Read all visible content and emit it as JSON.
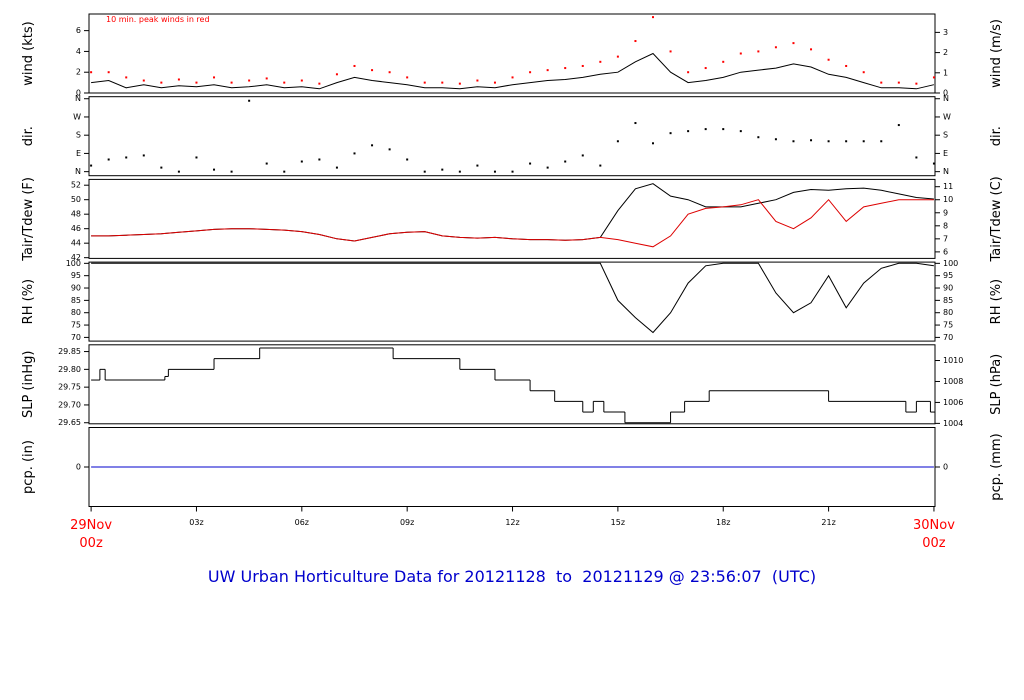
{
  "title": "UW Urban Horticulture Data for 20121128  to  20121129 @ 23:56:07  (UTC)",
  "title_color": "#0000cc",
  "chart_data": [
    {
      "type": "line",
      "ylabel": "wind (kts)",
      "y2label": "wind (m/s)",
      "annotation": "10 min. peak winds in red",
      "annotation_color": "#ff0000",
      "xlim": [
        -0.06,
        24.03
      ],
      "ylim": [
        0,
        7.6
      ],
      "yticks": [
        0,
        2,
        4,
        6
      ],
      "y2lim": [
        0,
        3.91
      ],
      "y2ticks": [
        0,
        1,
        2,
        3
      ],
      "x": [
        0,
        0.5,
        1,
        1.5,
        2,
        2.5,
        3,
        3.5,
        4,
        4.5,
        5,
        5.5,
        6,
        6.5,
        7,
        7.5,
        8,
        8.5,
        9,
        9.5,
        10,
        10.5,
        11,
        11.5,
        12,
        12.5,
        13,
        13.5,
        14,
        14.5,
        15,
        15.5,
        16,
        16.5,
        17,
        17.5,
        18,
        18.5,
        19,
        19.5,
        20,
        20.5,
        21,
        21.5,
        22,
        22.5,
        23,
        23.5,
        24
      ],
      "series": [
        {
          "type": "line",
          "color": "#000000",
          "values": [
            1.0,
            1.2,
            0.5,
            0.8,
            0.5,
            0.7,
            0.6,
            0.8,
            0.5,
            0.6,
            0.8,
            0.5,
            0.6,
            0.4,
            1.0,
            1.5,
            1.2,
            1.0,
            0.8,
            0.5,
            0.5,
            0.4,
            0.6,
            0.5,
            0.8,
            1.0,
            1.2,
            1.3,
            1.5,
            1.8,
            2.0,
            3.0,
            3.8,
            2.0,
            1.0,
            1.2,
            1.5,
            2.0,
            2.2,
            2.4,
            2.8,
            2.5,
            1.8,
            1.5,
            1.0,
            0.5,
            0.5,
            0.4,
            0.8
          ]
        },
        {
          "type": "scatter",
          "color": "#ff0000",
          "values": [
            2.0,
            2.0,
            1.5,
            1.2,
            1.0,
            1.3,
            1.0,
            1.5,
            1.0,
            1.2,
            1.4,
            1.0,
            1.2,
            0.9,
            1.8,
            2.6,
            2.2,
            2.0,
            1.5,
            1.0,
            1.0,
            0.9,
            1.2,
            1.0,
            1.5,
            2.0,
            2.2,
            2.4,
            2.6,
            3.0,
            3.5,
            5.0,
            7.3,
            4.0,
            2.0,
            2.4,
            3.0,
            3.8,
            4.0,
            4.4,
            4.8,
            4.2,
            3.2,
            2.6,
            2.0,
            1.0,
            1.0,
            0.9,
            1.5
          ]
        }
      ]
    },
    {
      "type": "scatter",
      "ylabel": "dir.",
      "y2label": "dir.",
      "xlim": [
        -0.06,
        24.03
      ],
      "ylim": [
        -20,
        370
      ],
      "yticks": [
        {
          "value": 0,
          "label": "N"
        },
        {
          "value": 90,
          "label": "E"
        },
        {
          "value": 180,
          "label": "S"
        },
        {
          "value": 270,
          "label": "W"
        },
        {
          "value": 360,
          "label": "N"
        }
      ],
      "y2lim": [
        -20,
        370
      ],
      "y2ticks": [
        {
          "value": 0,
          "label": "N"
        },
        {
          "value": 90,
          "label": "E"
        },
        {
          "value": 180,
          "label": "S"
        },
        {
          "value": 270,
          "label": "W"
        },
        {
          "value": 360,
          "label": "N"
        }
      ],
      "x": [
        0,
        0.5,
        1,
        1.5,
        2,
        2.5,
        3,
        3.5,
        4,
        4.5,
        5,
        5.5,
        6,
        6.5,
        7,
        7.5,
        8,
        8.5,
        9,
        9.5,
        10,
        10.5,
        11,
        11.5,
        12,
        12.5,
        13,
        13.5,
        14,
        14.5,
        15,
        15.5,
        16,
        16.5,
        17,
        17.5,
        18,
        18.5,
        19,
        19.5,
        20,
        20.5,
        21,
        21.5,
        22,
        22.5,
        23,
        23.5,
        24
      ],
      "series": [
        {
          "type": "scatter",
          "color": "#000000",
          "values": [
            30,
            60,
            70,
            80,
            20,
            0,
            70,
            10,
            0,
            350,
            40,
            0,
            50,
            60,
            20,
            90,
            130,
            110,
            60,
            0,
            10,
            0,
            30,
            0,
            0,
            40,
            20,
            50,
            80,
            30,
            150,
            240,
            140,
            190,
            200,
            210,
            210,
            200,
            170,
            160,
            150,
            155,
            150,
            150,
            150,
            150,
            230,
            70,
            40
          ]
        }
      ]
    },
    {
      "type": "line",
      "ylabel": "Tair/Tdew (F)",
      "y2label": "Tair/Tdew (C)",
      "xlim": [
        -0.06,
        24.03
      ],
      "ylim": [
        41.9,
        52.8
      ],
      "yticks": [
        42,
        44,
        46,
        48,
        50,
        52
      ],
      "y2lim": [
        5.5,
        11.56
      ],
      "y2ticks": [
        6,
        7,
        8,
        9,
        10,
        11
      ],
      "x": [
        0,
        0.5,
        1,
        1.5,
        2,
        2.5,
        3,
        3.5,
        4,
        4.5,
        5,
        5.5,
        6,
        6.5,
        7,
        7.5,
        8,
        8.5,
        9,
        9.5,
        10,
        10.5,
        11,
        11.5,
        12,
        12.5,
        13,
        13.5,
        14,
        14.5,
        15,
        15.5,
        16,
        16.5,
        17,
        17.5,
        18,
        18.5,
        19,
        19.5,
        20,
        20.5,
        21,
        21.5,
        22,
        22.5,
        23,
        23.5,
        24
      ],
      "series": [
        {
          "type": "line",
          "color": "#000000",
          "values": [
            45,
            45,
            45.1,
            45.2,
            45.3,
            45.5,
            45.7,
            45.9,
            46,
            46,
            45.9,
            45.8,
            45.6,
            45.2,
            44.6,
            44.3,
            44.8,
            45.3,
            45.5,
            45.6,
            45,
            44.8,
            44.7,
            44.8,
            44.6,
            44.5,
            44.5,
            44.4,
            44.5,
            44.8,
            48.5,
            51.5,
            52.2,
            50.5,
            50,
            49,
            49,
            49,
            49.5,
            50,
            51,
            51.4,
            51.3,
            51.5,
            51.6,
            51.3,
            50.8,
            50.3,
            50.1
          ]
        },
        {
          "type": "line",
          "color": "#dd0000",
          "values": [
            45,
            45,
            45.1,
            45.2,
            45.3,
            45.5,
            45.7,
            45.9,
            46,
            46,
            45.9,
            45.8,
            45.6,
            45.2,
            44.6,
            44.3,
            44.8,
            45.3,
            45.5,
            45.6,
            45,
            44.8,
            44.7,
            44.8,
            44.6,
            44.5,
            44.5,
            44.4,
            44.5,
            44.8,
            44.5,
            44,
            43.5,
            45,
            48,
            48.8,
            49,
            49.3,
            50,
            47,
            46,
            47.5,
            50,
            47,
            49,
            49.5,
            50,
            50,
            50
          ]
        }
      ]
    },
    {
      "type": "line",
      "ylabel": "RH (%)",
      "y2label": "RH (%)",
      "xlim": [
        -0.06,
        24.03
      ],
      "ylim": [
        68.5,
        100.5
      ],
      "yticks": [
        70,
        75,
        80,
        85,
        90,
        95,
        100
      ],
      "y2lim": [
        68.5,
        100.5
      ],
      "y2ticks": [
        70,
        75,
        80,
        85,
        90,
        95,
        100
      ],
      "x": [
        0,
        0.5,
        1,
        1.5,
        2,
        2.5,
        3,
        3.5,
        4,
        4.5,
        5,
        5.5,
        6,
        6.5,
        7,
        7.5,
        8,
        8.5,
        9,
        9.5,
        10,
        10.5,
        11,
        11.5,
        12,
        12.5,
        13,
        13.5,
        14,
        14.5,
        15,
        15.5,
        16,
        16.5,
        17,
        17.5,
        18,
        18.5,
        19,
        19.5,
        20,
        20.5,
        21,
        21.5,
        22,
        22.5,
        23,
        23.5,
        24
      ],
      "series": [
        {
          "type": "line",
          "color": "#000000",
          "values": [
            100,
            100,
            100,
            100,
            100,
            100,
            100,
            100,
            100,
            100,
            100,
            100,
            100,
            100,
            100,
            100,
            100,
            100,
            100,
            100,
            100,
            100,
            100,
            100,
            100,
            100,
            100,
            100,
            100,
            100,
            85,
            78,
            72,
            80,
            92,
            99,
            100,
            100,
            100,
            88,
            80,
            84,
            95,
            82,
            92,
            98,
            100,
            100,
            99
          ]
        }
      ]
    },
    {
      "type": "step",
      "ylabel": "SLP (inHg)",
      "y2label": "SLP (hPa)",
      "xlim": [
        -0.06,
        24.03
      ],
      "ylim": [
        29.647,
        29.869
      ],
      "yticks": [
        29.65,
        {
          "value": 29.7,
          "label": "29.70"
        },
        29.75,
        {
          "value": 29.8,
          "label": "29.80"
        },
        29.85
      ],
      "y2lim": [
        1003.96,
        1011.5
      ],
      "y2ticks": [
        1004,
        1006,
        1008,
        1010
      ],
      "x": [
        0,
        0.25,
        0.4,
        2.1,
        2.2,
        3.5,
        4.8,
        8.6,
        10.5,
        11.5,
        12.5,
        13.2,
        14.0,
        14.3,
        14.6,
        15.2,
        16.5,
        16.9,
        17.6,
        21.0,
        23.2,
        23.5,
        23.9
      ],
      "series": [
        {
          "type": "step",
          "color": "#000000",
          "values": [
            29.77,
            29.8,
            29.77,
            29.78,
            29.8,
            29.83,
            29.86,
            29.83,
            29.8,
            29.77,
            29.74,
            29.71,
            29.68,
            29.71,
            29.68,
            29.65,
            29.68,
            29.71,
            29.74,
            29.71,
            29.68,
            29.71,
            29.68
          ]
        }
      ]
    },
    {
      "type": "line",
      "ylabel": "pcp. (in)",
      "y2label": "pcp. (mm)",
      "xlim": [
        -0.06,
        24.03
      ],
      "ylim": [
        -1,
        1
      ],
      "yticks": [
        0
      ],
      "y2lim": [
        -25.4,
        25.4
      ],
      "y2ticks": [
        0
      ],
      "xticks": [
        {
          "value": 0,
          "label": "29Nov\n00z",
          "color": "#ff0000"
        },
        {
          "value": 3,
          "label": "03z"
        },
        {
          "value": 6,
          "label": "06z"
        },
        {
          "value": 9,
          "label": "09z"
        },
        {
          "value": 12,
          "label": "12z"
        },
        {
          "value": 15,
          "label": "15z"
        },
        {
          "value": 18,
          "label": "18z"
        },
        {
          "value": 21,
          "label": "21z"
        },
        {
          "value": 24,
          "label": "30Nov\n00z",
          "color": "#ff0000"
        }
      ],
      "x": [
        0,
        24
      ],
      "series": [
        {
          "type": "line",
          "color": "#0000cc",
          "values": [
            0,
            0
          ]
        }
      ]
    }
  ]
}
